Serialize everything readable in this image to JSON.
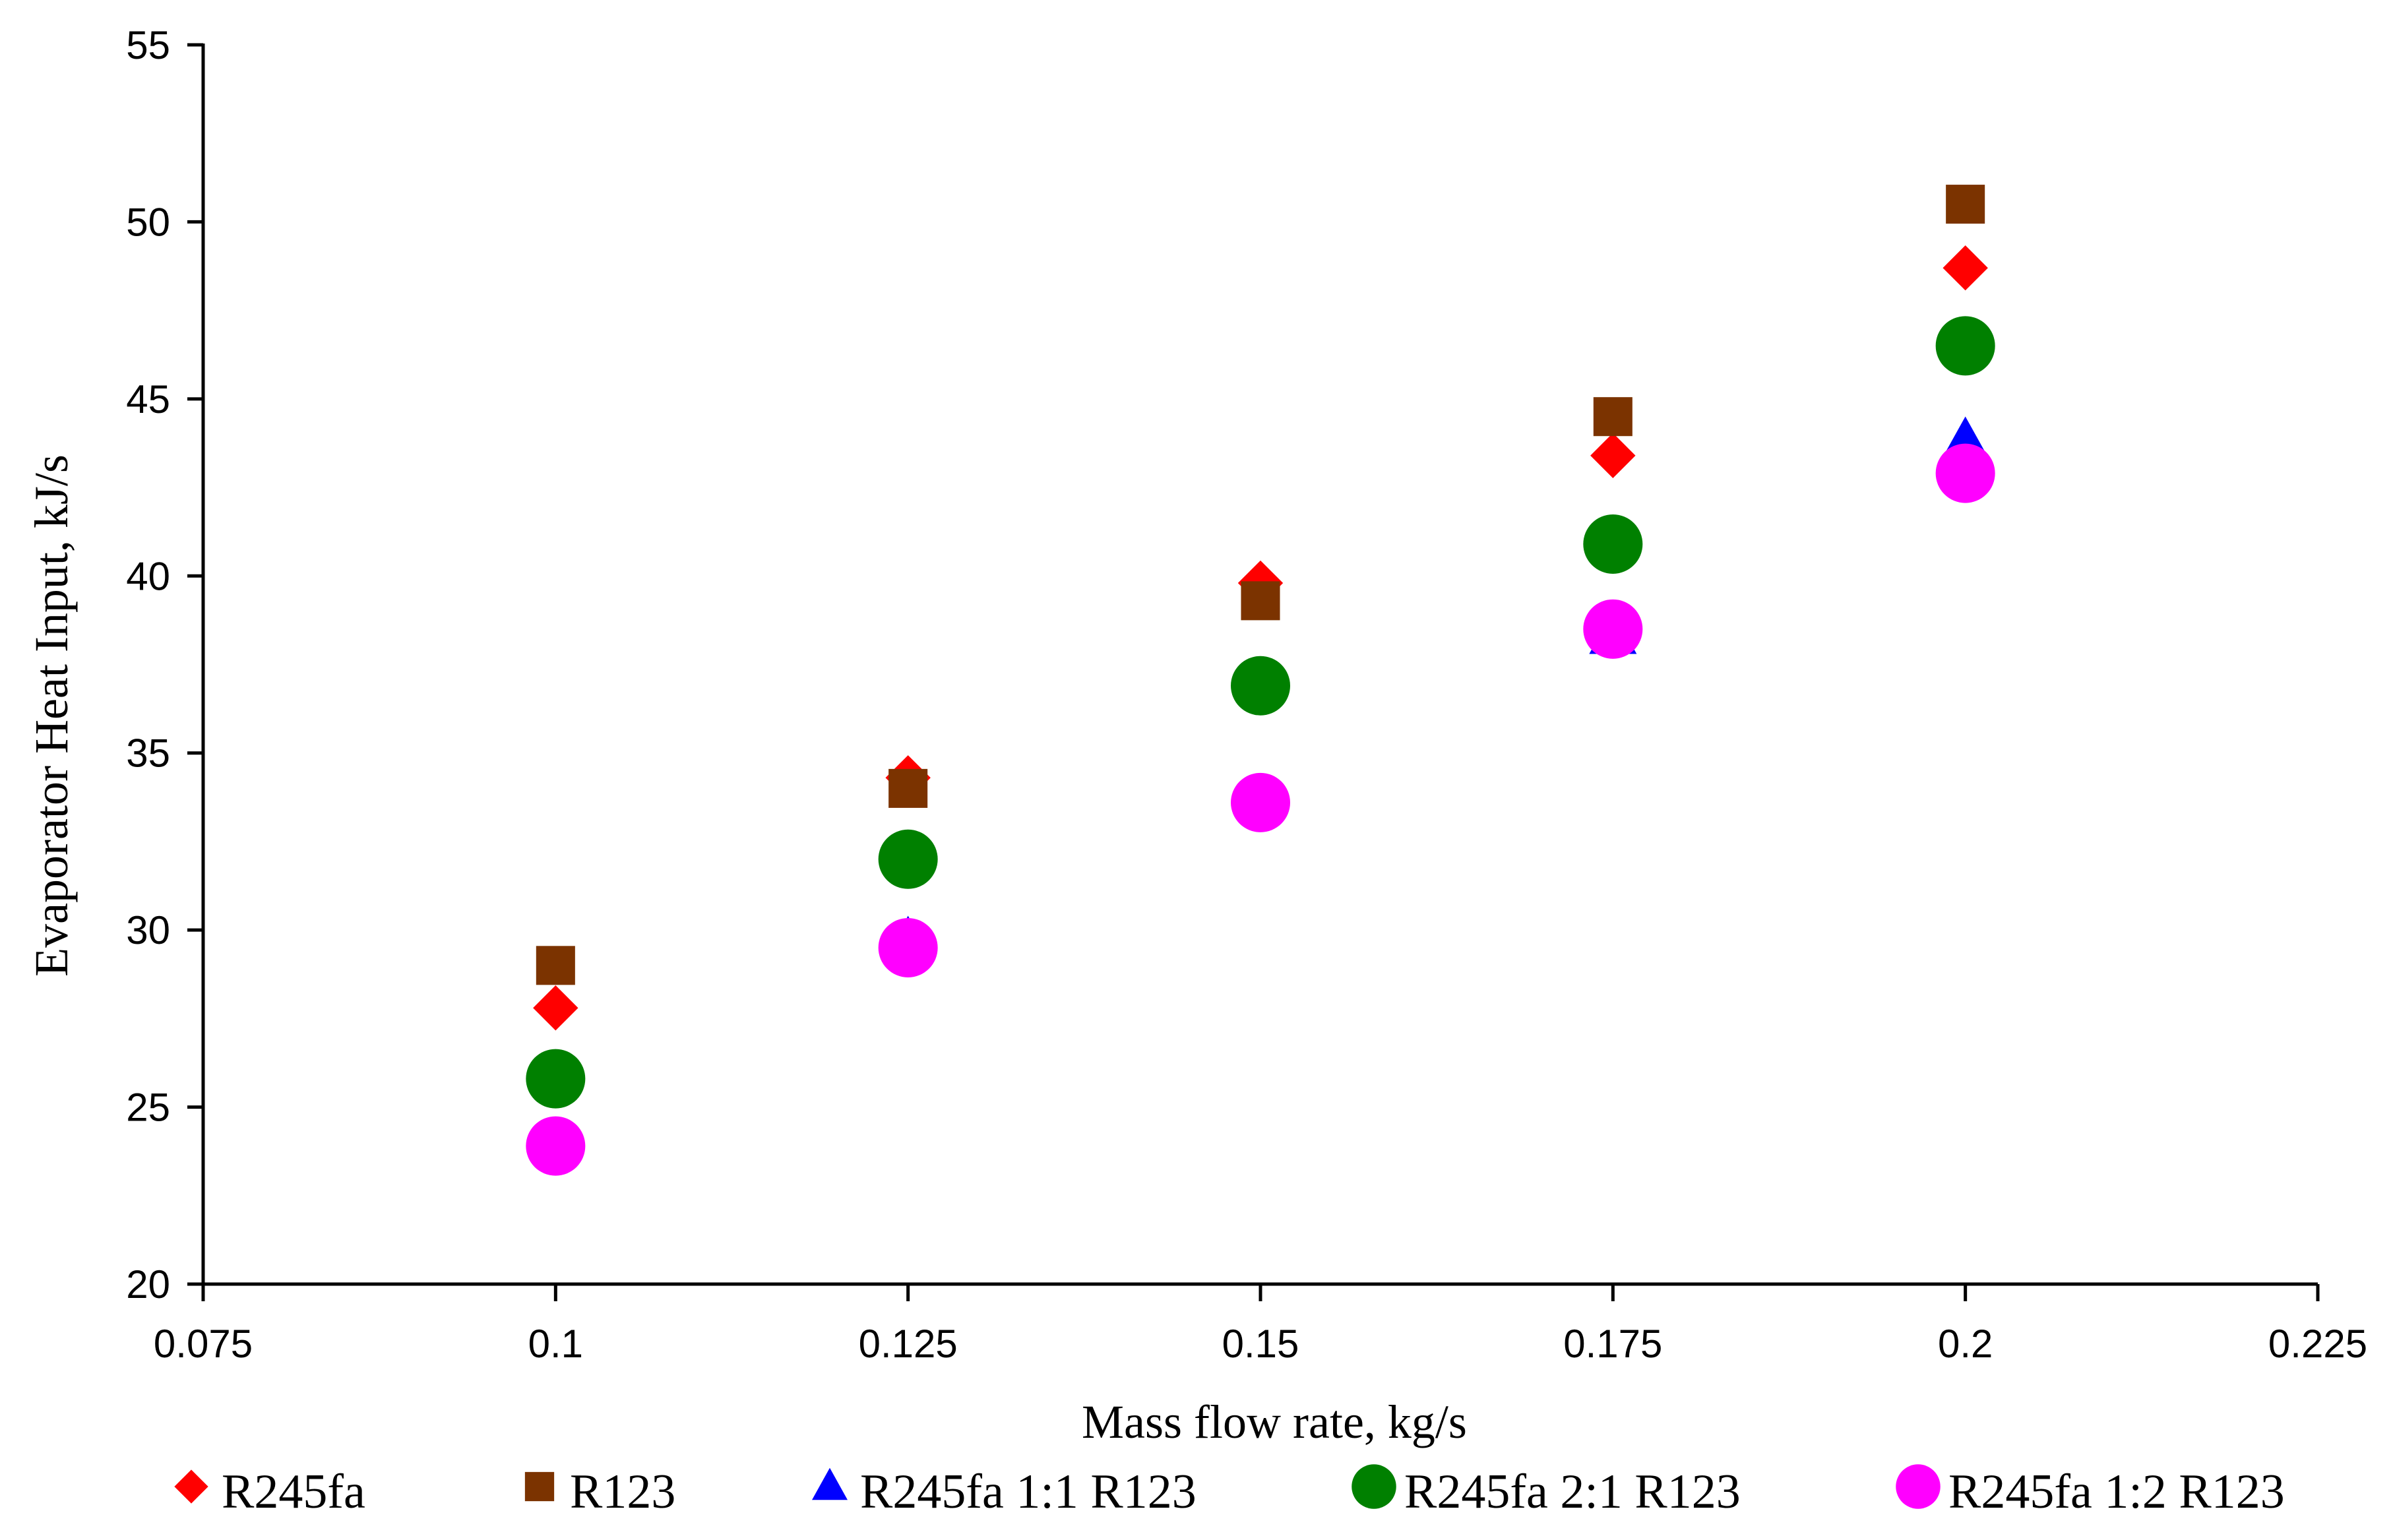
{
  "chart_data": {
    "type": "scatter",
    "title": "",
    "xlabel": "Mass flow rate, kg/s",
    "ylabel": "Evaporator Heat Input,  kJ/s",
    "xlim": [
      0.075,
      0.225
    ],
    "ylim": [
      20,
      55
    ],
    "xticks": [
      "0.075",
      "0.1",
      "0.125",
      "0.15",
      "0.175",
      "0.2",
      "0.225"
    ],
    "yticks": [
      "20",
      "25",
      "30",
      "35",
      "40",
      "45",
      "50",
      "55"
    ],
    "grid": false,
    "legend_position": "bottom",
    "x": [
      0.1,
      0.125,
      0.15,
      0.175,
      0.2
    ],
    "series": [
      {
        "name": "R245fa",
        "marker": "diamond",
        "color": "#ff0000",
        "values": [
          27.8,
          34.3,
          39.8,
          43.4,
          48.7
        ]
      },
      {
        "name": "R123",
        "marker": "square",
        "color": "#7b3300",
        "values": [
          29.0,
          34.0,
          39.3,
          44.5,
          50.5
        ]
      },
      {
        "name": "R245fa 1:1 R123",
        "marker": "triangle",
        "color": "#0000ff",
        "values": [
          24.0,
          29.7,
          33.6,
          38.3,
          43.8
        ]
      },
      {
        "name": "R245fa 2:1 R123",
        "marker": "circle",
        "color": "#008000",
        "values": [
          25.8,
          32.0,
          36.9,
          40.9,
          46.5
        ]
      },
      {
        "name": "R245fa 1:2 R123",
        "marker": "circle",
        "color": "#ff00ff",
        "values": [
          23.9,
          29.5,
          33.6,
          38.5,
          42.9
        ]
      }
    ]
  }
}
